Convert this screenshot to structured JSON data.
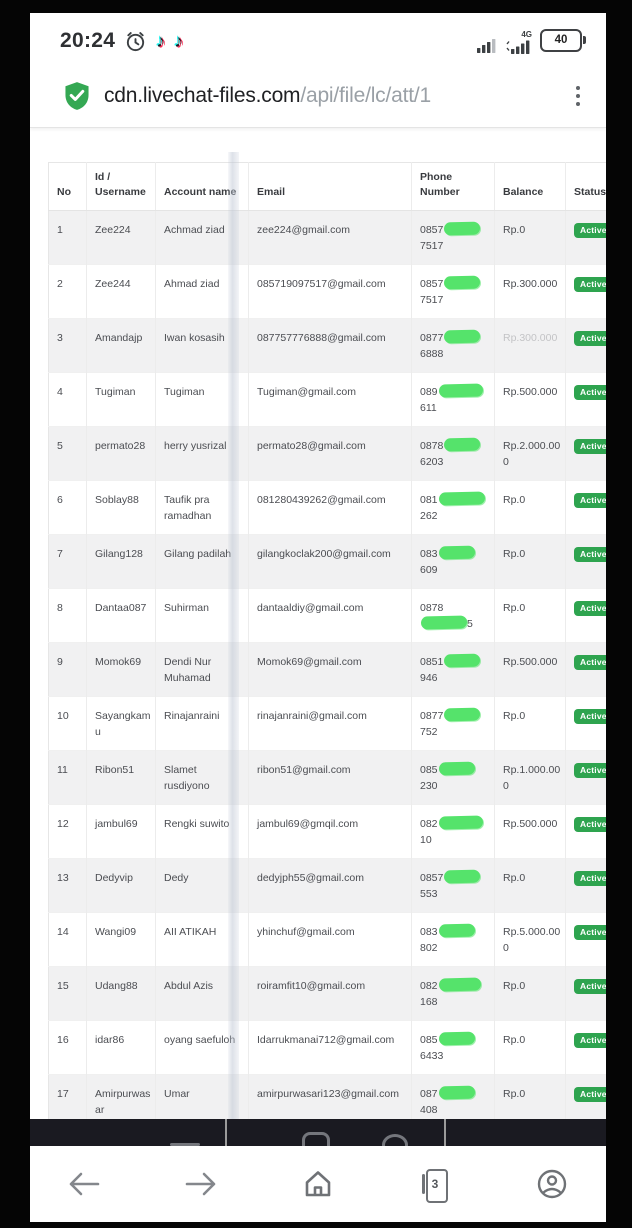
{
  "status_bar": {
    "time": "20:24",
    "network_label": "4G",
    "battery_level": "40"
  },
  "browser": {
    "url_domain": "cdn.livechat-files.com",
    "url_path": "/api/file/lc/att/1",
    "tab_count": "3"
  },
  "table": {
    "headers": [
      "No",
      "Id / Username",
      "Account name",
      "Email",
      "Phone Number",
      "Balance",
      "Status"
    ],
    "rows": [
      {
        "no": "1",
        "username": "Zee224",
        "account": "Achmad ziad",
        "email": "zee224@gmail.com",
        "phone_prefix": "0857",
        "phone_suffix": "7517",
        "balance": "Rp.0",
        "status": "Active"
      },
      {
        "no": "2",
        "username": "Zee244",
        "account": "Ahmad ziad",
        "email": "085719097517@gmail.com",
        "phone_prefix": "0857",
        "phone_suffix": "7517",
        "balance": "Rp.300.000",
        "status": "Active"
      },
      {
        "no": "3",
        "username": "Amandajp",
        "account": "Iwan kosasih",
        "email": "087757776888@gmail.com",
        "phone_prefix": "0877",
        "phone_suffix": "6888",
        "balance": "Rp.300.000",
        "balance_faded": true,
        "status": "Active"
      },
      {
        "no": "4",
        "username": "Tugiman",
        "account": "Tugiman",
        "email": "Tugiman@gmail.com",
        "phone_prefix": "089",
        "phone_suffix": "611",
        "balance": "Rp.500.000",
        "status": "Active"
      },
      {
        "no": "5",
        "username": "permato28",
        "account": "herry yusrizal",
        "email": "permato28@gmail.com",
        "phone_prefix": "0878",
        "phone_suffix": "6203",
        "balance": "Rp.2.000.000",
        "status": "Active"
      },
      {
        "no": "6",
        "username": "Soblay88",
        "account": "Taufik pra ramadhan",
        "email": "081280439262@gmail.com",
        "phone_prefix": "081",
        "phone_suffix": "262",
        "balance": "Rp.0",
        "status": "Active"
      },
      {
        "no": "7",
        "username": "Gilang128",
        "account": "Gilang padilah",
        "email": "gilangkoclak200@gmail.com",
        "phone_prefix": "083",
        "phone_suffix": "609",
        "balance": "Rp.0",
        "status": "Active"
      },
      {
        "no": "8",
        "username": "Dantaa087",
        "account": "Suhirman",
        "email": "dantaaldiy@gmail.com",
        "phone_prefix": "0878",
        "phone_suffix": "5",
        "balance": "Rp.0",
        "status": "Active"
      },
      {
        "no": "9",
        "username": "Momok69",
        "account": "Dendi Nur Muhamad",
        "email": "Momok69@gmail.com",
        "phone_prefix": "0851",
        "phone_suffix": "946",
        "balance": "Rp.500.000",
        "status": "Active"
      },
      {
        "no": "10",
        "username": "Sayangkamu",
        "account": "Rinajanraini",
        "email": "rinajanraini@gmail.com",
        "phone_prefix": "0877",
        "phone_suffix": "752",
        "balance": "Rp.0",
        "status": "Active"
      },
      {
        "no": "11",
        "username": "Ribon51",
        "account": "Slamet rusdiyono",
        "email": "ribon51@gmail.com",
        "phone_prefix": "085",
        "phone_suffix": "230",
        "balance": "Rp.1.000.000",
        "status": "Active"
      },
      {
        "no": "12",
        "username": "jambul69",
        "account": "Rengki suwito",
        "email": "jambul69@gmqil.com",
        "phone_prefix": "082",
        "phone_suffix": "10",
        "balance": "Rp.500.000",
        "status": "Active"
      },
      {
        "no": "13",
        "username": "Dedyvip",
        "account": "Dedy",
        "email": "dedyjph55@gmail.com",
        "phone_prefix": "0857",
        "phone_suffix": "553",
        "balance": "Rp.0",
        "status": "Active"
      },
      {
        "no": "14",
        "username": "Wangi09",
        "account": "AII ATIKAH",
        "email": "yhinchuf@gmail.com",
        "phone_prefix": "083",
        "phone_suffix": "802",
        "balance": "Rp.5.000.000",
        "status": "Active"
      },
      {
        "no": "15",
        "username": "Udang88",
        "account": "Abdul Azis",
        "email": "roiramfit10@gmail.com",
        "phone_prefix": "082",
        "phone_suffix": "168",
        "balance": "Rp.0",
        "status": "Active"
      },
      {
        "no": "16",
        "username": "idar86",
        "account": "oyang saefuloh",
        "email": "Idarrukmanai712@gmail.com",
        "phone_prefix": "085",
        "phone_suffix": "6433",
        "balance": "Rp.0",
        "status": "Active"
      },
      {
        "no": "17",
        "username": "Amirpurwasar",
        "account": "Umar",
        "email": "amirpurwasari123@gmail.com",
        "phone_prefix": "087",
        "phone_suffix": "408",
        "balance": "Rp.0",
        "status": "Active"
      }
    ]
  },
  "colors": {
    "badge_green": "#2ea44f",
    "redaction_green": "#55e36b",
    "shield_green": "#34a853"
  }
}
